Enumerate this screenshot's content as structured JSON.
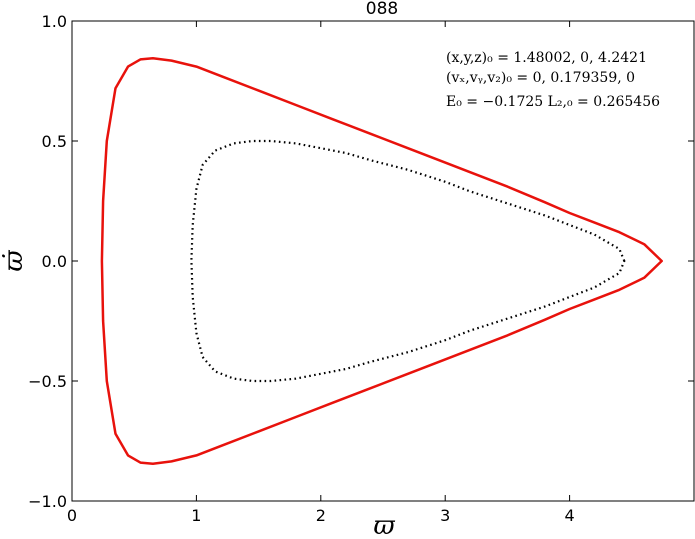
{
  "chart_data": {
    "type": "line",
    "title": "088",
    "xlabel": "ϖ",
    "ylabel": "ϖ̇",
    "xlim": [
      0,
      5
    ],
    "ylim": [
      -1.0,
      1.0
    ],
    "xticks": [
      "0",
      "1",
      "2",
      "3",
      "4"
    ],
    "yticks": [
      "1.0",
      "0.5",
      "0.0",
      "−0.5",
      "−1.0"
    ],
    "grid": false,
    "annotations": [
      "(x,y,z)₀ = 1.48002, 0, 4.2421",
      "(vₓ,vᵧ,v₂)₀ = 0, 0.179359, 0",
      "E₀ = −0.1725   L₂,₀ = 0.265456"
    ],
    "series": [
      {
        "style": "solid",
        "color": "#e8120c",
        "x": [
          4.74,
          4.6,
          4.4,
          4.2,
          4.0,
          3.8,
          3.5,
          3.2,
          3.0,
          2.7,
          2.4,
          2.1,
          1.8,
          1.5,
          1.2,
          1.0,
          0.8,
          0.65,
          0.55,
          0.45,
          0.35,
          0.28,
          0.25,
          0.24,
          0.25,
          0.28,
          0.35,
          0.45,
          0.55,
          0.65,
          0.8,
          1.0,
          1.2,
          1.5,
          1.8,
          2.1,
          2.4,
          2.7,
          3.0,
          3.2,
          3.5,
          3.8,
          4.0,
          4.2,
          4.4,
          4.6,
          4.74
        ],
        "y": [
          0.0,
          0.07,
          0.12,
          0.16,
          0.2,
          0.245,
          0.31,
          0.37,
          0.41,
          0.47,
          0.53,
          0.59,
          0.65,
          0.71,
          0.77,
          0.81,
          0.835,
          0.845,
          0.84,
          0.81,
          0.72,
          0.5,
          0.25,
          0.0,
          -0.25,
          -0.5,
          -0.72,
          -0.81,
          -0.84,
          -0.845,
          -0.835,
          -0.81,
          -0.77,
          -0.71,
          -0.65,
          -0.59,
          -0.53,
          -0.47,
          -0.41,
          -0.37,
          -0.31,
          -0.245,
          -0.2,
          -0.16,
          -0.12,
          -0.07,
          0.0
        ]
      },
      {
        "style": "dotted",
        "color": "#000000",
        "x": [
          4.44,
          4.4,
          4.3,
          4.2,
          4.0,
          3.8,
          3.5,
          3.2,
          3.0,
          2.7,
          2.4,
          2.2,
          2.0,
          1.8,
          1.6,
          1.45,
          1.3,
          1.15,
          1.05,
          1.0,
          0.97,
          0.96,
          0.97,
          1.0,
          1.05,
          1.15,
          1.3,
          1.45,
          1.6,
          1.8,
          2.0,
          2.2,
          2.4,
          2.7,
          3.0,
          3.2,
          3.5,
          3.8,
          4.0,
          4.2,
          4.3,
          4.4,
          4.44
        ],
        "y": [
          0.0,
          0.05,
          0.08,
          0.11,
          0.15,
          0.19,
          0.24,
          0.29,
          0.33,
          0.38,
          0.42,
          0.45,
          0.47,
          0.49,
          0.5,
          0.5,
          0.49,
          0.46,
          0.4,
          0.3,
          0.15,
          0.0,
          -0.15,
          -0.3,
          -0.4,
          -0.46,
          -0.49,
          -0.5,
          -0.5,
          -0.49,
          -0.47,
          -0.45,
          -0.42,
          -0.38,
          -0.33,
          -0.29,
          -0.24,
          -0.19,
          -0.15,
          -0.11,
          -0.08,
          -0.05,
          0.0
        ]
      }
    ]
  }
}
